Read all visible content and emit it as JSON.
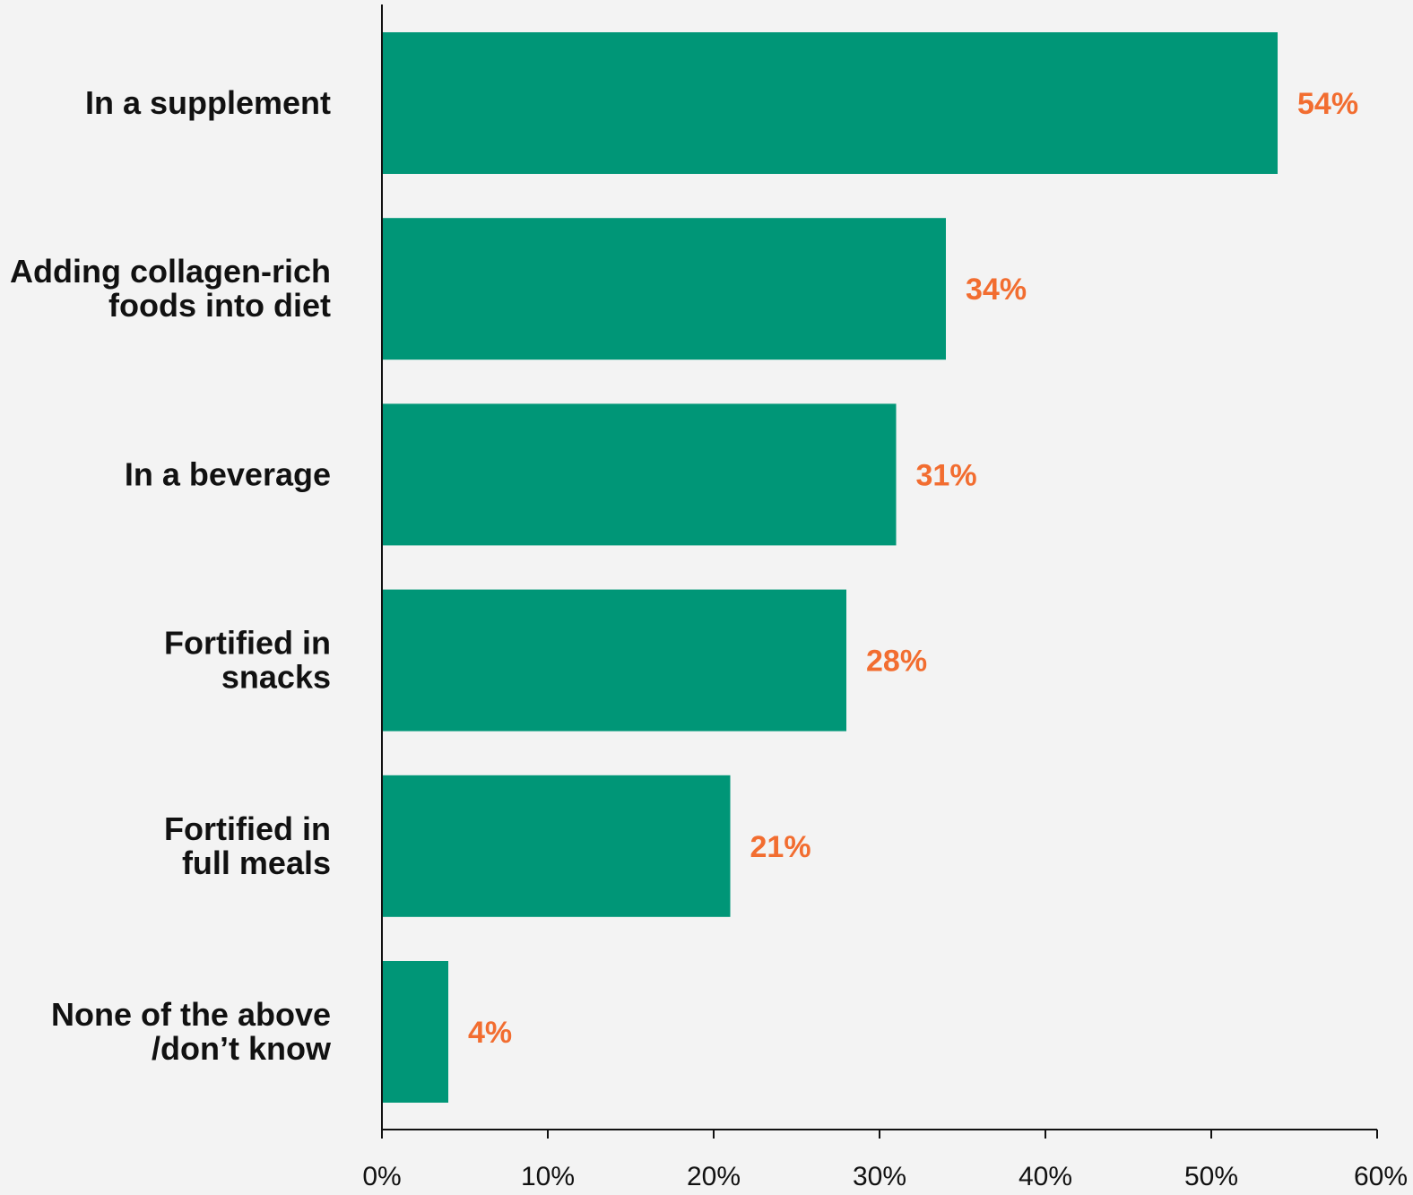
{
  "chart_data": {
    "type": "bar",
    "orientation": "horizontal",
    "title": "",
    "xlabel": "",
    "ylabel": "",
    "categories": [
      [
        "In a supplement"
      ],
      [
        "Adding collagen-rich",
        "foods into diet"
      ],
      [
        "In a beverage"
      ],
      [
        "Fortified in",
        "snacks"
      ],
      [
        "Fortified in",
        "full meals"
      ],
      [
        "None of the above",
        "/don’t know"
      ]
    ],
    "values": [
      54,
      34,
      31,
      28,
      21,
      4
    ],
    "value_labels": [
      "54%",
      "34%",
      "31%",
      "28%",
      "21%",
      "4%"
    ],
    "xlim": [
      0,
      60
    ],
    "ticks": [
      0,
      10,
      20,
      30,
      40,
      50,
      60
    ],
    "tick_labels": [
      "0%",
      "10%",
      "20%",
      "30%",
      "40%",
      "50%",
      "60%"
    ],
    "grid": false,
    "legend": "none",
    "colors": {
      "bar": "#009677",
      "value_label": "#f26d30",
      "axis": "#111111",
      "background": "#f3f3f3"
    }
  }
}
